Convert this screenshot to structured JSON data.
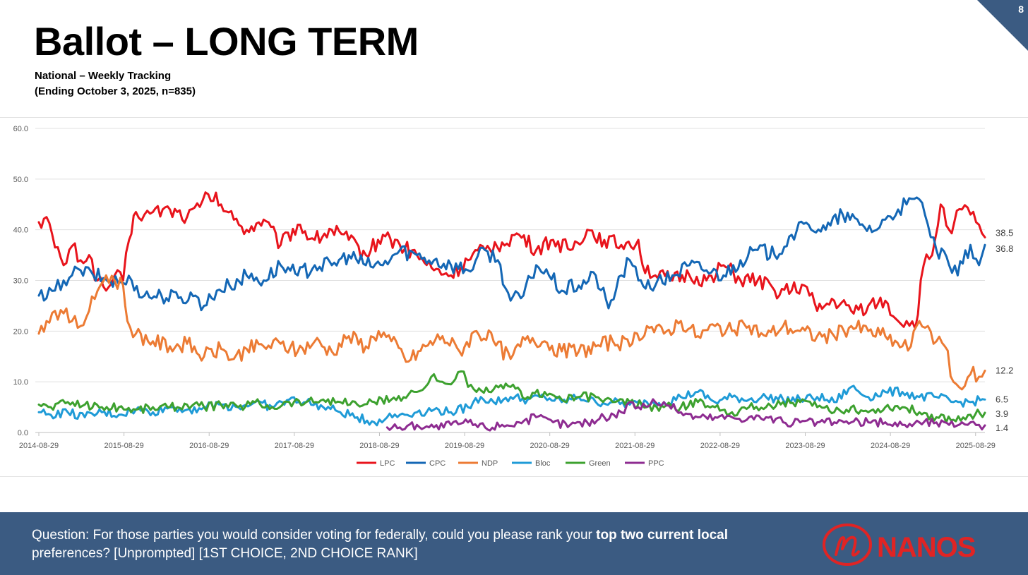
{
  "header": {
    "title": "Ballot – LONG TERM",
    "subtitle_line1": "National – Weekly Tracking",
    "subtitle_line2": "(Ending October 3, 2025, n=835)",
    "page_number": "8"
  },
  "colors": {
    "LPC": "#e8141c",
    "CPC": "#1467b5",
    "NDP": "#ec7b34",
    "Bloc": "#1f9bd7",
    "Green": "#3da12f",
    "PPC": "#8e2c91",
    "footer_bg": "#3b5b82",
    "corner": "#3b5b82"
  },
  "chart_data": {
    "type": "line",
    "title": "",
    "xlabel": "",
    "ylabel": "",
    "ylim": [
      0,
      60
    ],
    "y_ticks": [
      "0.0",
      "10.0",
      "20.0",
      "30.0",
      "40.0",
      "50.0",
      "60.0"
    ],
    "x_range": [
      2014.66,
      2025.77
    ],
    "x_ticks": [
      {
        "label": "2014-08-29",
        "x": 2014.66
      },
      {
        "label": "2015-08-29",
        "x": 2015.66
      },
      {
        "label": "2016-08-29",
        "x": 2016.66
      },
      {
        "label": "2017-08-29",
        "x": 2017.66
      },
      {
        "label": "2018-08-29",
        "x": 2018.66
      },
      {
        "label": "2019-08-29",
        "x": 2019.66
      },
      {
        "label": "2020-08-29",
        "x": 2020.66
      },
      {
        "label": "2021-08-29",
        "x": 2021.66
      },
      {
        "label": "2022-08-29",
        "x": 2022.66
      },
      {
        "label": "2023-08-29",
        "x": 2023.66
      },
      {
        "label": "2024-08-29",
        "x": 2024.66
      },
      {
        "label": "2025-08-29",
        "x": 2025.66
      }
    ],
    "grid": true,
    "legend": "bottom-center",
    "series": [
      {
        "name": "LPC",
        "end_label": "38.5",
        "x": [
          2014.66,
          2014.75,
          2014.85,
          2014.95,
          2015.05,
          2015.15,
          2015.25,
          2015.35,
          2015.45,
          2015.55,
          2015.65,
          2015.72,
          2015.8,
          2015.9,
          2016.0,
          2016.2,
          2016.4,
          2016.55,
          2016.65,
          2016.8,
          2016.95,
          2017.1,
          2017.3,
          2017.5,
          2017.7,
          2017.9,
          2018.1,
          2018.3,
          2018.5,
          2018.7,
          2018.9,
          2019.1,
          2019.3,
          2019.5,
          2019.7,
          2019.9,
          2020.1,
          2020.3,
          2020.5,
          2020.7,
          2020.9,
          2021.1,
          2021.3,
          2021.5,
          2021.7,
          2021.75,
          2021.9,
          2022.1,
          2022.3,
          2022.5,
          2022.7,
          2022.9,
          2023.1,
          2023.3,
          2023.5,
          2023.65,
          2023.8,
          2024.0,
          2024.2,
          2024.4,
          2024.6,
          2024.75,
          2024.85,
          2024.95,
          2025.05,
          2025.15,
          2025.25,
          2025.35,
          2025.5,
          2025.6,
          2025.7,
          2025.77
        ],
        "values": [
          41.5,
          42.5,
          36.5,
          33,
          36.8,
          34,
          35,
          30,
          28,
          31,
          30,
          38,
          43.5,
          43,
          43.5,
          44,
          42.5,
          44.5,
          47,
          45,
          42,
          40,
          42,
          37,
          41,
          38,
          40,
          38,
          35,
          39,
          37,
          35,
          32,
          31,
          34,
          36,
          37.5,
          39,
          36,
          38,
          36,
          40,
          38,
          37,
          38,
          33,
          31,
          30,
          31,
          30,
          33,
          30,
          30,
          28,
          28,
          29,
          24,
          26,
          24,
          25,
          26,
          22,
          22,
          20.5,
          33,
          35,
          45,
          40,
          44,
          43,
          41,
          38.5
        ]
      },
      {
        "name": "CPC",
        "end_label": "36.8",
        "x": [
          2014.66,
          2014.75,
          2014.85,
          2014.95,
          2015.05,
          2015.15,
          2015.3,
          2015.5,
          2015.65,
          2015.75,
          2015.9,
          2016.1,
          2016.3,
          2016.5,
          2016.6,
          2016.75,
          2016.9,
          2017.1,
          2017.3,
          2017.5,
          2017.7,
          2017.9,
          2018.1,
          2018.3,
          2018.5,
          2018.7,
          2018.9,
          2019.1,
          2019.3,
          2019.5,
          2019.7,
          2019.9,
          2020.05,
          2020.2,
          2020.35,
          2020.5,
          2020.65,
          2020.8,
          2021.0,
          2021.2,
          2021.35,
          2021.5,
          2021.6,
          2021.7,
          2021.9,
          2022.1,
          2022.3,
          2022.5,
          2022.7,
          2022.9,
          2023.1,
          2023.3,
          2023.5,
          2023.7,
          2023.9,
          2024.1,
          2024.3,
          2024.5,
          2024.6,
          2024.75,
          2024.85,
          2025.0,
          2025.1,
          2025.2,
          2025.35,
          2025.45,
          2025.6,
          2025.7,
          2025.77
        ],
        "values": [
          27,
          26.5,
          28,
          30,
          31,
          32,
          31,
          30,
          29.5,
          30,
          27,
          27,
          26.5,
          27,
          25,
          28,
          29,
          31,
          30,
          33,
          31,
          33,
          33,
          35,
          33,
          33,
          36,
          35,
          34,
          33,
          32,
          36,
          34,
          26,
          27,
          33,
          31,
          28,
          29,
          31,
          24.5,
          31,
          34,
          30,
          29,
          31,
          33,
          32,
          31,
          34,
          36,
          35,
          39,
          41,
          40,
          43,
          41,
          40,
          42,
          44,
          45,
          46,
          41,
          36,
          33,
          31,
          37,
          33,
          37
        ]
      },
      {
        "name": "NDP",
        "end_label": "12.2",
        "x": [
          2014.66,
          2014.75,
          2014.85,
          2014.95,
          2015.05,
          2015.15,
          2015.25,
          2015.35,
          2015.45,
          2015.55,
          2015.65,
          2015.7,
          2015.8,
          2016.0,
          2016.2,
          2016.4,
          2016.6,
          2016.8,
          2016.95,
          2017.1,
          2017.3,
          2017.5,
          2017.7,
          2017.9,
          2018.1,
          2018.3,
          2018.5,
          2018.65,
          2018.8,
          2019.0,
          2019.2,
          2019.4,
          2019.6,
          2019.8,
          2020.0,
          2020.2,
          2020.4,
          2020.6,
          2020.8,
          2021.0,
          2021.2,
          2021.4,
          2021.6,
          2021.8,
          2022.0,
          2022.2,
          2022.4,
          2022.6,
          2022.8,
          2023.0,
          2023.2,
          2023.4,
          2023.6,
          2023.8,
          2024.0,
          2024.2,
          2024.4,
          2024.6,
          2024.8,
          2024.9,
          2025.0,
          2025.1,
          2025.2,
          2025.3,
          2025.4,
          2025.5,
          2025.6,
          2025.7,
          2025.77
        ],
        "values": [
          19.5,
          22,
          24,
          23.5,
          22,
          21,
          24,
          28,
          31,
          30,
          29,
          22,
          19.5,
          18,
          17,
          17.5,
          15,
          16.5,
          14.5,
          16.5,
          17,
          17.5,
          16,
          18,
          16,
          19,
          17,
          20,
          18,
          14,
          17,
          19,
          16,
          20,
          18,
          14.5,
          19,
          18,
          16,
          16,
          17,
          18,
          17,
          21,
          19.5,
          22,
          19,
          21,
          20,
          21,
          19,
          21,
          20,
          19,
          19,
          21,
          20,
          19,
          17,
          17,
          22,
          21,
          18,
          17,
          10,
          8.5,
          11.5,
          11,
          12.2
        ]
      },
      {
        "name": "Bloc",
        "end_label": "6.5",
        "x": [
          2014.66,
          2014.8,
          2015.0,
          2015.2,
          2015.4,
          2015.6,
          2015.8,
          2016.0,
          2016.2,
          2016.4,
          2016.6,
          2016.8,
          2017.0,
          2017.2,
          2017.4,
          2017.6,
          2017.8,
          2018.0,
          2018.2,
          2018.4,
          2018.6,
          2018.75,
          2018.9,
          2019.1,
          2019.3,
          2019.5,
          2019.7,
          2019.85,
          2020.0,
          2020.2,
          2020.4,
          2020.6,
          2020.8,
          2021.0,
          2021.2,
          2021.4,
          2021.6,
          2021.8,
          2022.0,
          2022.2,
          2022.4,
          2022.6,
          2022.8,
          2023.0,
          2023.2,
          2023.4,
          2023.6,
          2023.8,
          2024.0,
          2024.2,
          2024.4,
          2024.6,
          2024.8,
          2025.0,
          2025.2,
          2025.4,
          2025.6,
          2025.77
        ],
        "values": [
          4,
          3.5,
          4,
          3,
          4,
          3.5,
          4.5,
          4,
          5,
          4.5,
          5,
          5.5,
          5,
          6,
          5,
          6.5,
          6,
          5,
          4,
          3,
          2,
          3,
          3.5,
          4,
          4.5,
          4,
          5,
          7,
          6,
          7,
          6.5,
          7,
          6,
          7,
          6,
          6,
          5.5,
          6,
          6,
          7,
          8,
          6,
          7,
          6.5,
          7,
          6.5,
          6.5,
          7,
          6,
          9,
          7,
          8,
          8,
          7,
          7,
          6,
          6,
          6.5
        ]
      },
      {
        "name": "Green",
        "end_label": "3.9",
        "x": [
          2014.66,
          2014.8,
          2015.0,
          2015.2,
          2015.4,
          2015.6,
          2015.8,
          2016.0,
          2016.2,
          2016.4,
          2016.6,
          2016.8,
          2017.0,
          2017.2,
          2017.4,
          2017.6,
          2017.8,
          2018.0,
          2018.2,
          2018.4,
          2018.6,
          2018.8,
          2019.0,
          2019.1,
          2019.2,
          2019.3,
          2019.4,
          2019.5,
          2019.55,
          2019.65,
          2019.7,
          2019.8,
          2020.0,
          2020.2,
          2020.4,
          2020.6,
          2020.8,
          2021.0,
          2021.2,
          2021.4,
          2021.6,
          2021.8,
          2022.0,
          2022.2,
          2022.4,
          2022.6,
          2022.8,
          2023.0,
          2023.2,
          2023.4,
          2023.6,
          2023.8,
          2024.0,
          2024.2,
          2024.4,
          2024.6,
          2024.8,
          2025.0,
          2025.2,
          2025.4,
          2025.6,
          2025.77
        ],
        "values": [
          5.5,
          5,
          6,
          5.5,
          5,
          5,
          4.5,
          5,
          5,
          5.5,
          5,
          5.5,
          5,
          6,
          5,
          6,
          6,
          6.5,
          6,
          5.5,
          6,
          6.5,
          7.5,
          8,
          9,
          11.5,
          10,
          9.5,
          10.5,
          12,
          9,
          8,
          8.5,
          9,
          7,
          8,
          6.5,
          7,
          7,
          6,
          6,
          5,
          5,
          5,
          6,
          5,
          4,
          5,
          5,
          6,
          6,
          5,
          4,
          5,
          4,
          5,
          5,
          4,
          3,
          2.5,
          3.5,
          3.9
        ]
      },
      {
        "name": "PPC",
        "end_label": "1.4",
        "x": [
          2018.75,
          2018.9,
          2019.1,
          2019.3,
          2019.5,
          2019.7,
          2019.9,
          2020.1,
          2020.3,
          2020.5,
          2020.7,
          2020.9,
          2021.1,
          2021.3,
          2021.5,
          2021.6,
          2021.7,
          2021.9,
          2022.0,
          2022.2,
          2022.4,
          2022.6,
          2022.8,
          2023.0,
          2023.2,
          2023.4,
          2023.6,
          2023.8,
          2024.0,
          2024.2,
          2024.4,
          2024.6,
          2024.8,
          2025.0,
          2025.2,
          2025.35,
          2025.5,
          2025.6,
          2025.7,
          2025.77
        ],
        "values": [
          1,
          1,
          1.5,
          1,
          1.5,
          2,
          1,
          1.5,
          2,
          3,
          2,
          1.5,
          2,
          3,
          4,
          6,
          5,
          6,
          6,
          4,
          3,
          3,
          3,
          3,
          3,
          2,
          2,
          2,
          2,
          2,
          2,
          2,
          1.5,
          2,
          2,
          1.5,
          2,
          2,
          1.5,
          1.4
        ]
      }
    ]
  },
  "footer": {
    "question_part1": "Question: For those parties you would consider voting for federally, could you please rank your ",
    "question_bold": "top two current local",
    "question_part2": " preferences? [Unprompted] [1ST CHOICE, 2ND CHOICE RANK]",
    "logo_text": "NANOS"
  }
}
